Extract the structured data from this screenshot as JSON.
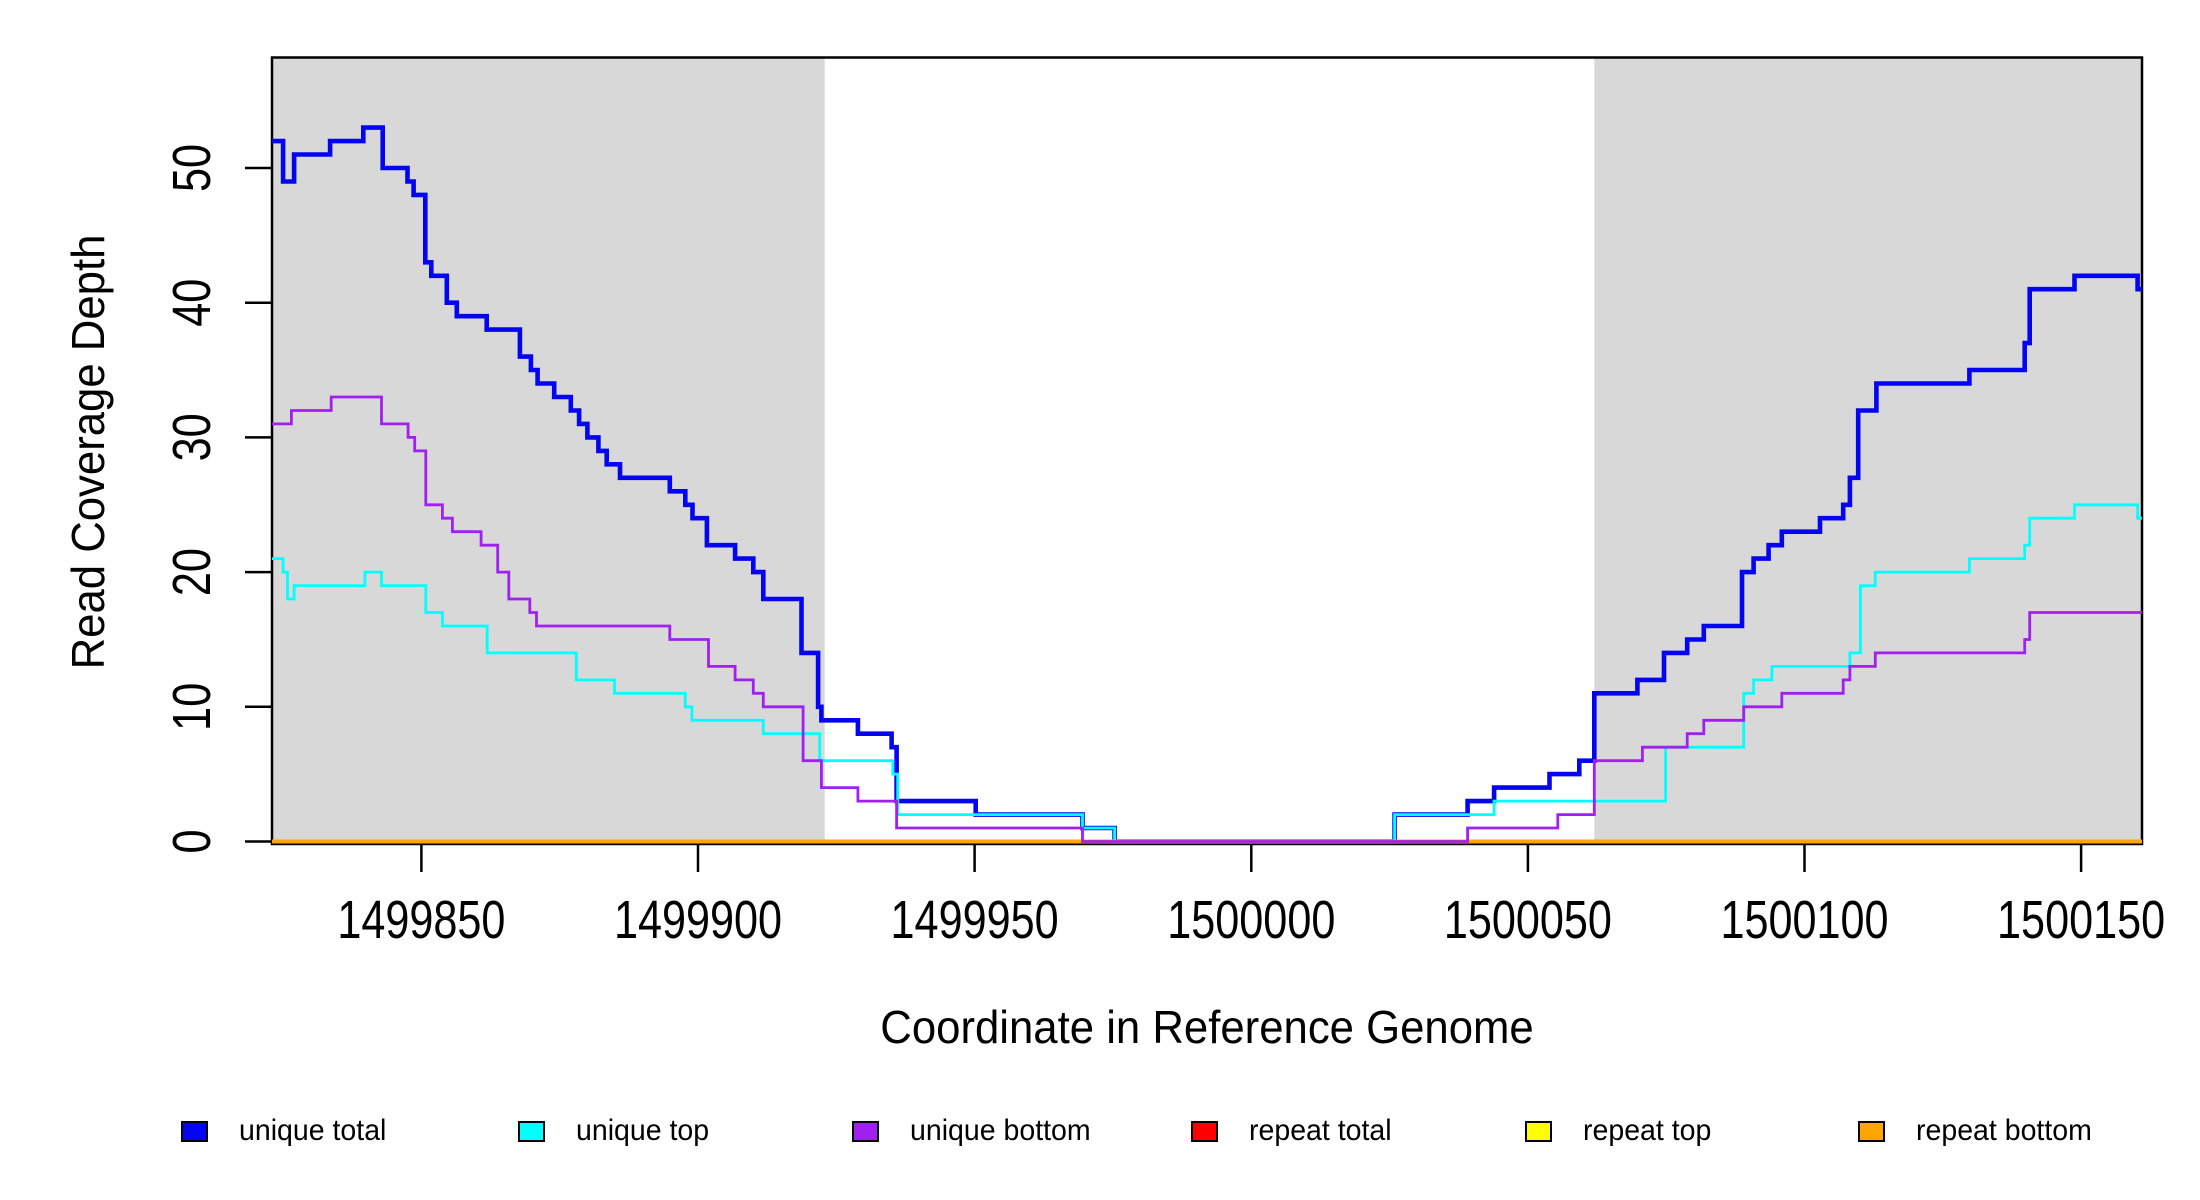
{
  "axes": {
    "xlabel": "Coordinate in Reference Genome",
    "ylabel": "Read Coverage Depth"
  },
  "chart_data": {
    "type": "line",
    "style": "step-post",
    "title": "",
    "xlabel": "Coordinate in Reference Genome",
    "ylabel": "Read Coverage Depth",
    "xlim": [
      1499823,
      1500161
    ],
    "ylim": [
      0,
      58.2
    ],
    "grid": false,
    "x_tick_values": [
      1499850,
      1499900,
      1499950,
      1500000,
      1500050,
      1500100,
      1500150
    ],
    "x_tick_labels": [
      "1499850",
      "1499900",
      "1499950",
      "1500000",
      "1500050",
      "1500100",
      "1500150"
    ],
    "y_tick_values": [
      0,
      10,
      20,
      30,
      40,
      50
    ],
    "y_tick_labels": [
      "0",
      "10",
      "20",
      "30",
      "40",
      "50"
    ],
    "highlight_color": "#D8D8D8",
    "highlight_regions_x": [
      [
        1499823,
        1499922.9
      ],
      [
        1500062,
        1500161
      ]
    ],
    "legend_position": "bottom",
    "series": [
      {
        "id": "unique-total",
        "name": "unique total",
        "color": "#0404F2",
        "width": 4.6,
        "z": 1,
        "steps": [
          [
            1499823,
            52
          ],
          [
            1499825,
            49
          ],
          [
            1499827,
            51
          ],
          [
            1499833.5,
            52
          ],
          [
            1499839.5,
            53
          ],
          [
            1499843,
            50
          ],
          [
            1499847.5,
            49
          ],
          [
            1499848.6,
            48
          ],
          [
            1499850.7,
            43
          ],
          [
            1499851.8,
            42
          ],
          [
            1499854.6,
            40
          ],
          [
            1499856.4,
            39
          ],
          [
            1499861.8,
            38
          ],
          [
            1499867.8,
            36
          ],
          [
            1499869.8,
            35
          ],
          [
            1499871,
            34
          ],
          [
            1499874,
            33
          ],
          [
            1499877,
            32
          ],
          [
            1499878.5,
            31
          ],
          [
            1499880,
            30
          ],
          [
            1499882,
            29
          ],
          [
            1499883.5,
            28
          ],
          [
            1499885.9,
            27
          ],
          [
            1499894.9,
            26
          ],
          [
            1499897.7,
            25
          ],
          [
            1499899,
            24
          ],
          [
            1499901.6,
            22
          ],
          [
            1499906.7,
            21
          ],
          [
            1499910,
            20
          ],
          [
            1499911.8,
            18
          ],
          [
            1499918.7,
            14
          ],
          [
            1499921.7,
            10
          ],
          [
            1499922.3,
            9
          ],
          [
            1499928.9,
            8
          ],
          [
            1499935,
            7
          ],
          [
            1499935.9,
            3
          ],
          [
            1499950.2,
            2
          ],
          [
            1499969.5,
            1
          ],
          [
            1499975.3,
            0
          ],
          [
            1500025.9,
            2
          ],
          [
            1500039.1,
            3
          ],
          [
            1500043.9,
            4
          ],
          [
            1500053.9,
            5
          ],
          [
            1500059.3,
            6
          ],
          [
            1500062,
            11
          ],
          [
            1500069.8,
            12
          ],
          [
            1500074.6,
            14
          ],
          [
            1500078.8,
            15
          ],
          [
            1500081.8,
            16
          ],
          [
            1500088.7,
            20
          ],
          [
            1500090.8,
            21
          ],
          [
            1500093.5,
            22
          ],
          [
            1500095.9,
            23
          ],
          [
            1500102.8,
            24
          ],
          [
            1500107,
            25
          ],
          [
            1500108.2,
            27
          ],
          [
            1500109.7,
            32
          ],
          [
            1500113,
            34
          ],
          [
            1500129.8,
            35
          ],
          [
            1500139.8,
            37
          ],
          [
            1500140.7,
            41
          ],
          [
            1500148.8,
            42
          ],
          [
            1500160.2,
            41
          ]
        ]
      },
      {
        "id": "unique-top",
        "name": "unique top",
        "color": "#00FFFF",
        "width": 2.8,
        "z": 2,
        "steps": [
          [
            1499823,
            21
          ],
          [
            1499825,
            20
          ],
          [
            1499825.8,
            18
          ],
          [
            1499827,
            19
          ],
          [
            1499839.8,
            20
          ],
          [
            1499842.8,
            19
          ],
          [
            1499850.8,
            17
          ],
          [
            1499853.8,
            16
          ],
          [
            1499861.9,
            14
          ],
          [
            1499878,
            12
          ],
          [
            1499884.9,
            11
          ],
          [
            1499897.7,
            10
          ],
          [
            1499898.9,
            9
          ],
          [
            1499911.8,
            8
          ],
          [
            1499922,
            6
          ],
          [
            1499935.2,
            5
          ],
          [
            1499936.1,
            2
          ],
          [
            1499969.5,
            1
          ],
          [
            1499975.3,
            0
          ],
          [
            1500025.9,
            2
          ],
          [
            1500043.9,
            3
          ],
          [
            1500074.9,
            7
          ],
          [
            1500089,
            11
          ],
          [
            1500090.8,
            12
          ],
          [
            1500094.1,
            13
          ],
          [
            1500108.2,
            14
          ],
          [
            1500110.1,
            19
          ],
          [
            1500112.8,
            20
          ],
          [
            1500129.8,
            21
          ],
          [
            1500139.8,
            22
          ],
          [
            1500140.7,
            24
          ],
          [
            1500148.8,
            25
          ],
          [
            1500160.2,
            24
          ]
        ]
      },
      {
        "id": "unique-bottom",
        "name": "unique bottom",
        "color": "#A020F0",
        "width": 2.8,
        "z": 6,
        "steps": [
          [
            1499823,
            31
          ],
          [
            1499826.5,
            32
          ],
          [
            1499833.7,
            33
          ],
          [
            1499842.8,
            31
          ],
          [
            1499847.6,
            30
          ],
          [
            1499848.8,
            29
          ],
          [
            1499850.8,
            25
          ],
          [
            1499853.8,
            24
          ],
          [
            1499855.6,
            23
          ],
          [
            1499860.8,
            22
          ],
          [
            1499863.8,
            20
          ],
          [
            1499865.8,
            18
          ],
          [
            1499869.6,
            17
          ],
          [
            1499870.8,
            16
          ],
          [
            1499894.9,
            15
          ],
          [
            1499901.9,
            13
          ],
          [
            1499906.7,
            12
          ],
          [
            1499910,
            11
          ],
          [
            1499911.8,
            10
          ],
          [
            1499919,
            6
          ],
          [
            1499922.3,
            4
          ],
          [
            1499928.9,
            3
          ],
          [
            1499935.9,
            1
          ],
          [
            1499969.5,
            0
          ],
          [
            1500039.1,
            1
          ],
          [
            1500055.4,
            2
          ],
          [
            1500062,
            6
          ],
          [
            1500070.7,
            7
          ],
          [
            1500078.8,
            8
          ],
          [
            1500081.8,
            9
          ],
          [
            1500089,
            10
          ],
          [
            1500095.9,
            11
          ],
          [
            1500107,
            12
          ],
          [
            1500108.2,
            13
          ],
          [
            1500112.8,
            14
          ],
          [
            1500139.8,
            15
          ],
          [
            1500140.7,
            17
          ]
        ]
      },
      {
        "id": "repeat-total",
        "name": "repeat total",
        "color": "#FF0000",
        "width": 2.8,
        "z": 3,
        "steps": [
          [
            1499823,
            0
          ]
        ]
      },
      {
        "id": "repeat-top",
        "name": "repeat top",
        "color": "#FFFF00",
        "width": 2.8,
        "z": 4,
        "steps": [
          [
            1499823,
            0
          ]
        ]
      },
      {
        "id": "repeat-bottom",
        "name": "repeat bottom",
        "color": "#FFA500",
        "width": 4,
        "z": 5,
        "steps": [
          [
            1499823,
            0
          ]
        ]
      }
    ]
  },
  "legend": {
    "items": [
      {
        "label": "unique total",
        "color": "#0404F2"
      },
      {
        "label": "unique top",
        "color": "#00FFFF"
      },
      {
        "label": "unique bottom",
        "color": "#A020F0"
      },
      {
        "label": "repeat total",
        "color": "#FF0000"
      },
      {
        "label": "repeat top",
        "color": "#FFFF00"
      },
      {
        "label": "repeat bottom",
        "color": "#FFA500"
      }
    ]
  }
}
